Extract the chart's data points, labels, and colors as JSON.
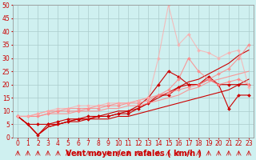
{
  "xlabel": "Vent moyen/en rafales ( km/h )",
  "background_color": "#cff0f0",
  "grid_color": "#aacccc",
  "x_values": [
    0,
    1,
    2,
    3,
    4,
    5,
    6,
    7,
    8,
    9,
    10,
    11,
    12,
    13,
    14,
    15,
    16,
    17,
    18,
    19,
    20,
    21,
    22,
    23
  ],
  "series": [
    {
      "y": [
        8,
        5,
        1,
        4,
        5,
        6,
        6,
        7,
        7,
        7,
        8,
        8,
        9,
        10,
        11,
        12,
        13,
        14,
        15,
        16,
        17,
        18,
        20,
        22
      ],
      "color": "#cc0000",
      "marker": null,
      "markersize": 0,
      "linewidth": 0.8,
      "alpha": 1.0
    },
    {
      "y": [
        8,
        5,
        1,
        4,
        5,
        6,
        7,
        7,
        8,
        9,
        10,
        10,
        11,
        13,
        15,
        17,
        19,
        21,
        22,
        24,
        26,
        28,
        31,
        33
      ],
      "color": "#cc0000",
      "marker": null,
      "markersize": 0,
      "linewidth": 0.8,
      "alpha": 1.0
    },
    {
      "y": [
        8,
        5,
        1,
        5,
        5,
        6,
        7,
        7,
        8,
        8,
        9,
        10,
        12,
        15,
        20,
        25,
        23,
        20,
        20,
        23,
        20,
        11,
        16,
        16
      ],
      "color": "#cc0000",
      "marker": "D",
      "markersize": 2,
      "linewidth": 0.8,
      "alpha": 1.0
    },
    {
      "y": [
        8,
        5,
        5,
        5,
        6,
        7,
        7,
        8,
        8,
        8,
        9,
        9,
        11,
        13,
        16,
        16,
        19,
        20,
        20,
        22,
        20,
        20,
        20,
        20
      ],
      "color": "#cc0000",
      "marker": "D",
      "markersize": 2,
      "linewidth": 0.8,
      "alpha": 1.0
    },
    {
      "y": [
        8,
        8,
        8,
        9,
        9,
        9,
        10,
        10,
        10,
        11,
        11,
        12,
        12,
        13,
        14,
        15,
        16,
        18,
        19,
        21,
        22,
        23,
        24,
        25
      ],
      "color": "#ff8888",
      "marker": null,
      "markersize": 0,
      "linewidth": 0.8,
      "alpha": 0.85
    },
    {
      "y": [
        8,
        8,
        8,
        9,
        10,
        10,
        10,
        11,
        11,
        12,
        13,
        13,
        14,
        15,
        16,
        17,
        18,
        19,
        20,
        22,
        24,
        26,
        30,
        35
      ],
      "color": "#ff8888",
      "marker": "D",
      "markersize": 2,
      "linewidth": 0.8,
      "alpha": 0.85
    },
    {
      "y": [
        8,
        8,
        9,
        10,
        10,
        11,
        11,
        11,
        12,
        12,
        12,
        13,
        13,
        14,
        16,
        18,
        22,
        30,
        25,
        22,
        20,
        21,
        22,
        20
      ],
      "color": "#ff8888",
      "marker": "D",
      "markersize": 2,
      "linewidth": 0.8,
      "alpha": 0.85
    },
    {
      "y": [
        8,
        8,
        9,
        10,
        11,
        11,
        12,
        12,
        12,
        13,
        13,
        13,
        14,
        15,
        30,
        50,
        35,
        39,
        33,
        32,
        30,
        32,
        33,
        19
      ],
      "color": "#ffaaaa",
      "marker": "D",
      "markersize": 2,
      "linewidth": 0.8,
      "alpha": 0.75
    }
  ],
  "ylim": [
    0,
    50
  ],
  "xlim": [
    -0.5,
    23.5
  ],
  "yticks": [
    0,
    5,
    10,
    15,
    20,
    25,
    30,
    35,
    40,
    45,
    50
  ],
  "xticks": [
    0,
    1,
    2,
    3,
    4,
    5,
    6,
    7,
    8,
    9,
    10,
    11,
    12,
    13,
    14,
    15,
    16,
    17,
    18,
    19,
    20,
    21,
    22,
    23
  ],
  "tick_color": "#cc0000",
  "tick_fontsize": 5.5,
  "xlabel_fontsize": 7,
  "arrow_color": "#cc0000"
}
